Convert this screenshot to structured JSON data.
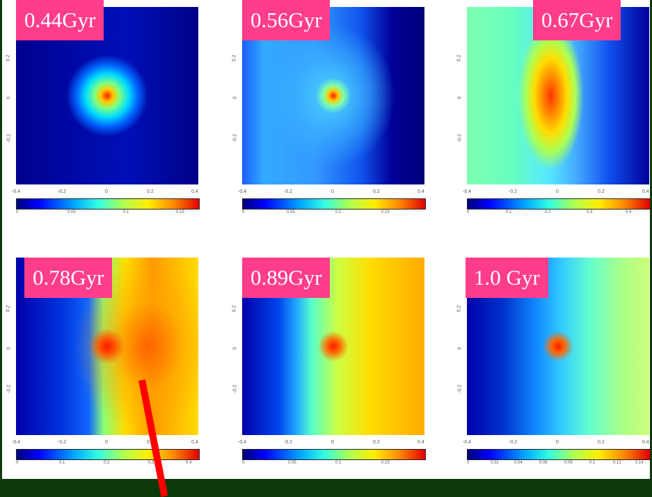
{
  "panels": [
    {
      "label": "0.44Gyr",
      "cbar_ticks": [
        "0",
        "0.05",
        "0.1",
        "0.15"
      ]
    },
    {
      "label": "0.56Gyr",
      "cbar_ticks": [
        "0",
        "0.05",
        "0.1",
        "0.15"
      ]
    },
    {
      "label": "0.67Gyr",
      "cbar_ticks": [
        "0",
        "0.1",
        "0.2",
        "0.3",
        "0.4"
      ]
    },
    {
      "label": "0.78Gyr",
      "cbar_ticks": [
        "0",
        "0.1",
        "0.2",
        "0.3",
        "0.4"
      ]
    },
    {
      "label": "0.89Gyr",
      "cbar_ticks": [
        "0",
        "0.05",
        "0.1",
        "0.15"
      ]
    },
    {
      "label": "1.0 Gyr",
      "cbar_ticks": [
        "0",
        "0.02",
        "0.04",
        "0.06",
        "0.08",
        "0.1",
        "0.12",
        "0.14"
      ]
    }
  ],
  "axis_ticks": [
    "-0.4",
    "-0.2",
    "0",
    "0.2",
    "0.4"
  ],
  "colors": {
    "label_bg": "#ff3d8b",
    "pointer": "#ff0000",
    "frame": "#0c3a0c"
  }
}
